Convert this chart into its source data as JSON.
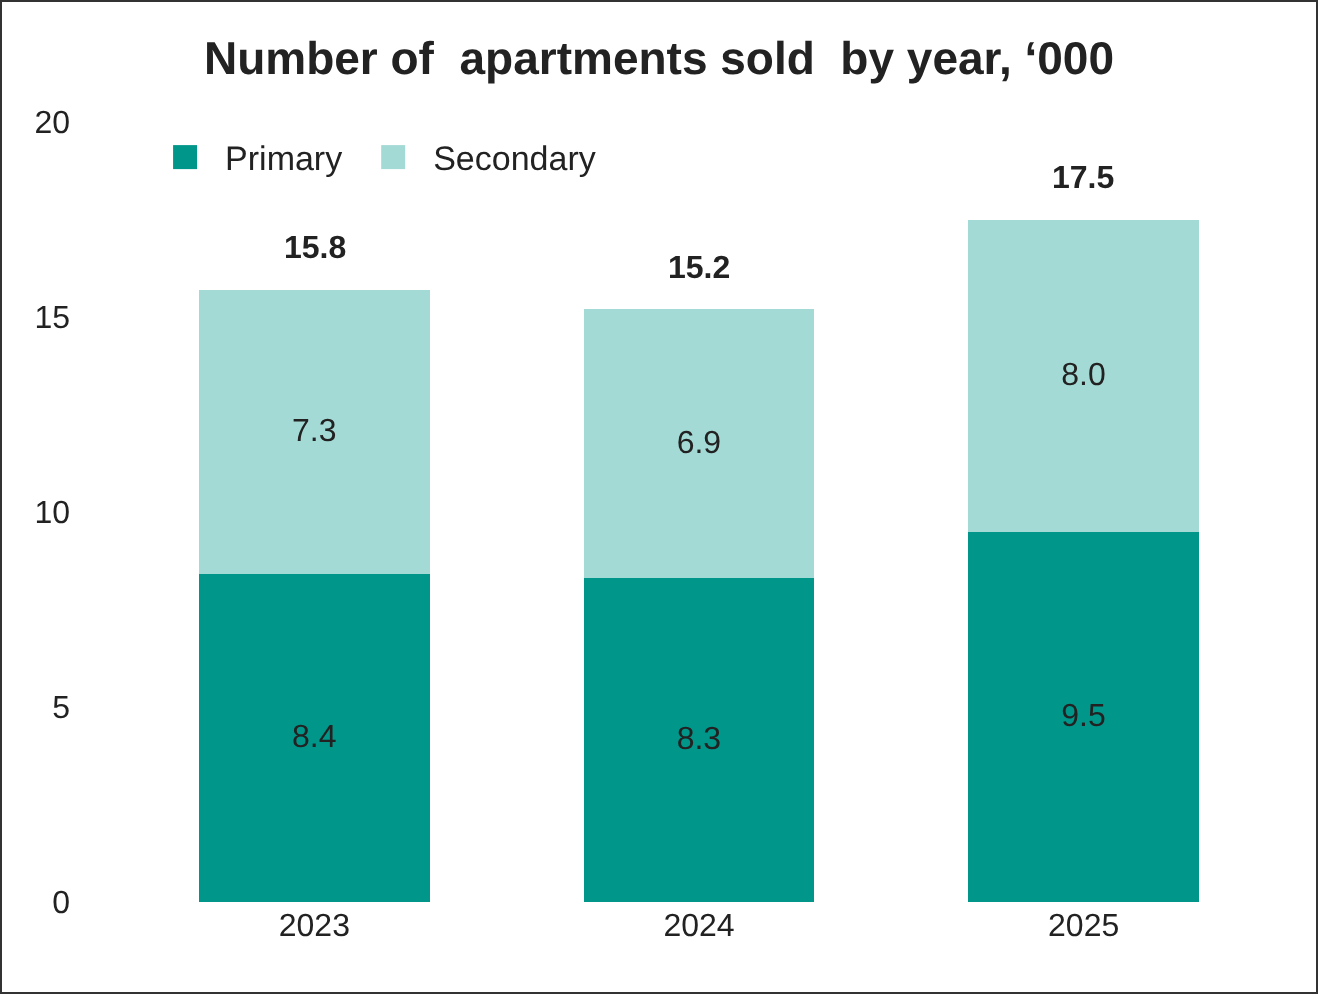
{
  "chart_data": {
    "type": "bar",
    "title": "Number of  apartments sold  by year, ‘000",
    "categories": [
      "2023",
      "2024",
      "2025"
    ],
    "stacked": true,
    "totals": [
      "15.8",
      "15.2",
      "17.5"
    ],
    "ylim": [
      0,
      20
    ],
    "yticks": [
      0,
      5,
      10,
      15,
      20
    ],
    "grid": false,
    "legend": "top left",
    "series": [
      {
        "name": "Primary",
        "color": "#00968a",
        "values": [
          8.4,
          8.3,
          9.5
        ],
        "value_labels": [
          "8.4",
          "8.3",
          "9.5"
        ]
      },
      {
        "name": "Secondary",
        "color": "#a3dad5",
        "values": [
          7.3,
          6.9,
          8.0
        ],
        "value_labels": [
          "7.3",
          "6.9",
          "8.0"
        ]
      }
    ]
  }
}
